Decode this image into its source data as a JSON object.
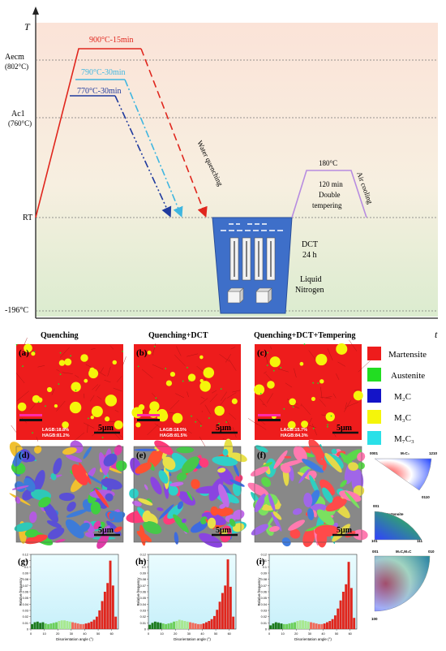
{
  "heat_diagram": {
    "axis_y": "T",
    "axis_x": "t",
    "levels": {
      "aecm": "Aecm",
      "aecm_temp": "(802°C)",
      "ac1": "Ac1",
      "ac1_temp": "(760°C)",
      "rt": "RT",
      "cryo": "-196°C"
    },
    "routes": [
      {
        "label": "900°C-15min",
        "color": "#e0261d"
      },
      {
        "label": "790°C-30min",
        "color": "#3fb6e0"
      },
      {
        "label": "770°C-30min",
        "color": "#1f3a9e"
      }
    ],
    "water_quenching": "Water quenching",
    "dct": "DCT",
    "dct_time": "24 h",
    "liquid": "Liquid",
    "nitrogen": "Nitrogen",
    "temper_temp": "180°C",
    "temper_time": "120 min",
    "double": "Double",
    "tempering": "tempering",
    "air_cooling": "Air cooling",
    "temper_color": "#b78ce0"
  },
  "columns": [
    "Quenching",
    "Quenching+DCT",
    "Quenching+DCT+Tempering"
  ],
  "phase_maps": [
    {
      "tag": "(a)",
      "lagb": "LAGB:18.8%",
      "hagb": "HAGB:81.2%",
      "scale": "5μm"
    },
    {
      "tag": "(b)",
      "lagb": "LAGB:18.5%",
      "hagb": "HAGB:81.5%",
      "scale": "5μm"
    },
    {
      "tag": "(c)",
      "lagb": "LAGB:15.7%",
      "hagb": "HAGB:84.3%",
      "scale": "5μm"
    }
  ],
  "legend": [
    {
      "label": "Martensite",
      "color": "#ee1c1c"
    },
    {
      "label": "Austenite",
      "color": "#22dd22"
    },
    {
      "label": "M₂C",
      "color": "#1414c8"
    },
    {
      "label": "M₃C",
      "color": "#f5f50a"
    },
    {
      "label": "M₇C₃",
      "color": "#2ae0e8"
    }
  ],
  "ipf_maps": [
    {
      "tag": "(d)",
      "scale": "5μm"
    },
    {
      "tag": "(e)",
      "scale": "5μm"
    },
    {
      "tag": "(f)",
      "scale": "5μm"
    }
  ],
  "ipf_keys": [
    {
      "title": "M₇C₃",
      "c1": "0001",
      "c2": "1210",
      "c3": "0110"
    },
    {
      "title": "Martensite",
      "c1": "001",
      "c2": "101",
      "c3": "111"
    },
    {
      "title": "M₂C,M₃C",
      "c1": "001",
      "c2": "010",
      "c3": "100"
    }
  ],
  "histograms": [
    {
      "tag": "(g)"
    },
    {
      "tag": "(h)"
    },
    {
      "tag": "(i)"
    }
  ],
  "hist_axis": {
    "ylabel": "Relative frequency",
    "xlabel": "Disorientation angle (°)",
    "yticks": [
      "0",
      "0.01",
      "0.02",
      "0.03",
      "0.04",
      "0.05",
      "0.06",
      "0.07",
      "0.08",
      "0.09",
      "0.1",
      "0.11",
      "0.12"
    ],
    "xticks": [
      "0",
      "10",
      "20",
      "30",
      "40",
      "50",
      "60"
    ]
  },
  "chart_data": {
    "type": "bar",
    "xlabel": "Disorientation angle (°)",
    "ylabel": "Relative frequency",
    "ylim": [
      0,
      0.12
    ],
    "xlim": [
      0,
      65
    ],
    "bin_width": 2,
    "series": [
      {
        "values": [
          0.008,
          0.011,
          0.012,
          0.01,
          0.011,
          0.009,
          0.008,
          0.009,
          0.01,
          0.011,
          0.013,
          0.014,
          0.014,
          0.013,
          0.012,
          0.011,
          0.01,
          0.009,
          0.008,
          0.008,
          0.009,
          0.01,
          0.012,
          0.015,
          0.02,
          0.03,
          0.045,
          0.06,
          0.074,
          0.11,
          0.07,
          0.02
        ]
      },
      {
        "values": [
          0.007,
          0.01,
          0.012,
          0.011,
          0.01,
          0.009,
          0.008,
          0.009,
          0.01,
          0.012,
          0.013,
          0.015,
          0.014,
          0.013,
          0.012,
          0.011,
          0.01,
          0.009,
          0.008,
          0.008,
          0.009,
          0.011,
          0.013,
          0.016,
          0.021,
          0.031,
          0.044,
          0.058,
          0.07,
          0.112,
          0.068,
          0.02
        ]
      },
      {
        "values": [
          0.006,
          0.009,
          0.011,
          0.01,
          0.009,
          0.008,
          0.008,
          0.009,
          0.01,
          0.011,
          0.013,
          0.014,
          0.014,
          0.013,
          0.012,
          0.011,
          0.01,
          0.009,
          0.008,
          0.008,
          0.009,
          0.011,
          0.013,
          0.016,
          0.022,
          0.033,
          0.046,
          0.06,
          0.072,
          0.108,
          0.066,
          0.018
        ]
      }
    ]
  }
}
